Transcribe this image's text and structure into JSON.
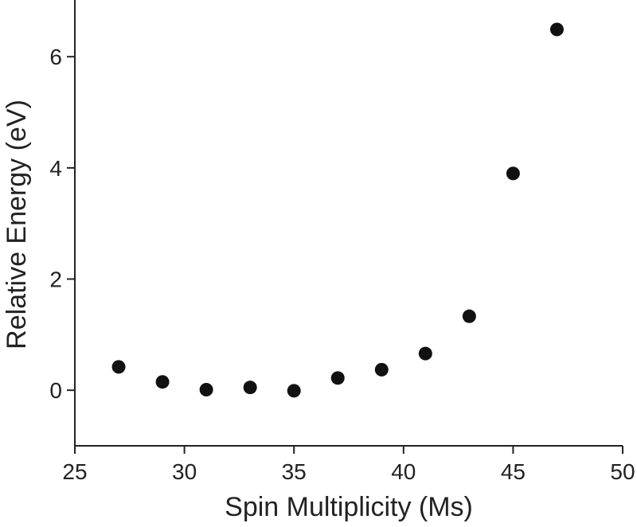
{
  "chart_data": {
    "type": "scatter",
    "x_label": "Spin Multiplicity (Ms)",
    "y_label": "Relative Energy (eV)",
    "series": [
      {
        "color": "#111111",
        "x": [
          27,
          29,
          31,
          33,
          35,
          37,
          39,
          41,
          43,
          45,
          47
        ],
        "values": [
          0.42,
          0.15,
          0.01,
          0.05,
          -0.01,
          0.22,
          0.37,
          0.66,
          1.33,
          3.9,
          6.49
        ]
      }
    ],
    "xlim": [
      25,
      50
    ],
    "xticks": [
      25,
      30,
      35,
      40,
      45,
      50
    ],
    "ylim": [
      -1,
      7
    ],
    "yticks": [
      0,
      2,
      4,
      6
    ]
  }
}
